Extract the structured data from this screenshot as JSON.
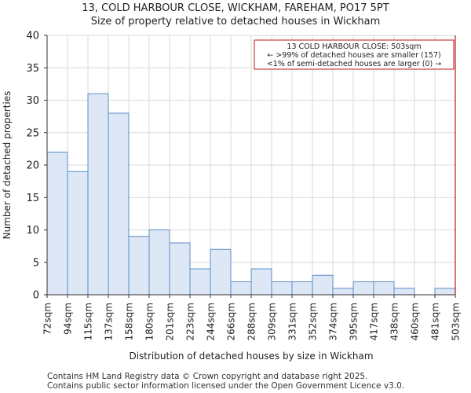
{
  "header": {
    "title": "13, COLD HARBOUR CLOSE, WICKHAM, FAREHAM, PO17 5PT",
    "subtitle": "Size of property relative to detached houses in Wickham"
  },
  "footer": {
    "line1": "Contains HM Land Registry data © Crown copyright and database right 2025.",
    "line2": "Contains public sector information licensed under the Open Government Licence v3.0."
  },
  "chart_data": {
    "type": "bar",
    "title": "13, COLD HARBOUR CLOSE, WICKHAM, FAREHAM, PO17 5PT",
    "subtitle": "Size of property relative to detached houses in Wickham",
    "xlabel": "Distribution of detached houses by size in Wickham",
    "ylabel": "Number of detached properties",
    "bin_edges": [
      "72sqm",
      "94sqm",
      "115sqm",
      "137sqm",
      "158sqm",
      "180sqm",
      "201sqm",
      "223sqm",
      "244sqm",
      "266sqm",
      "288sqm",
      "309sqm",
      "331sqm",
      "352sqm",
      "374sqm",
      "395sqm",
      "417sqm",
      "438sqm",
      "460sqm",
      "481sqm",
      "503sqm"
    ],
    "values": [
      22,
      19,
      31,
      28,
      9,
      10,
      8,
      4,
      7,
      2,
      4,
      2,
      2,
      3,
      1,
      2,
      2,
      1,
      0,
      1
    ],
    "ylim": [
      0,
      40
    ],
    "yticks": [
      0,
      5,
      10,
      15,
      20,
      25,
      30,
      35,
      40
    ],
    "grid": true,
    "bar_fill": "#dde7f5",
    "bar_stroke": "#5b8ec9",
    "marker": {
      "value_label": "503sqm",
      "bin_index": 20,
      "color": "#c0161b"
    },
    "annotation": {
      "line1": "13 COLD HARBOUR CLOSE: 503sqm",
      "line2": "← >99% of detached houses are smaller (157)",
      "line3": "<1% of semi-detached houses are larger (0) →",
      "placement": "top-right"
    }
  }
}
